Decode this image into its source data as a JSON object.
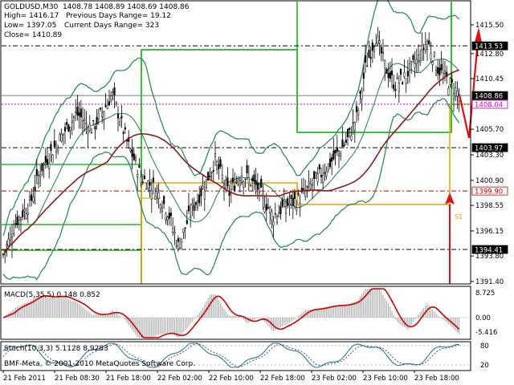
{
  "header": {
    "line1": "GOLDUSD,M30  1408.78 1408.89 1408.69 1408.86",
    "high": "High= 1416.17",
    "prev_range": "Previous Days Range= 19.12",
    "low": "Low= 1397.05",
    "curr_range": "Current Days Range= 323",
    "close": "Close= 1410.89"
  },
  "macd": {
    "title": "MACD(5,35,5) 0.148 0.852",
    "levels": [
      "8.725",
      "0.00",
      "-5.416"
    ]
  },
  "stoch": {
    "title": "Stoch(10,3,3) 5.1128 8.9283",
    "levels": [
      "80",
      "20"
    ]
  },
  "footer": "BMF-Meta, © 2001-2010 MetaQuotes Software Corp.",
  "price_labels": [
    "1415.50",
    "1412.80",
    "1410.45",
    "1405.70",
    "1403.30",
    "1400.90",
    "1398.55",
    "1396.15",
    "1393.80",
    "1391.40"
  ],
  "tagged_levels": [
    {
      "text": "1413.53",
      "value": 1413.53,
      "bg": "#000000",
      "fg": "#ffffff",
      "line": "#000000",
      "dash": "6 3 2 3"
    },
    {
      "text": "1408.86",
      "value": 1408.86,
      "bg": "#000000",
      "fg": "#ffffff",
      "line": "#7a7a7a",
      "dash": ""
    },
    {
      "text": "1408.04",
      "value": 1408.04,
      "bg": "#ffffff",
      "fg": "#cc00cc",
      "line": "#cc00cc",
      "dash": "2 2"
    },
    {
      "text": "1403.97",
      "value": 1403.97,
      "bg": "#000000",
      "fg": "#ffffff",
      "line": "#000000",
      "dash": "6 3 2 3"
    },
    {
      "text": "1399.90",
      "value": 1399.9,
      "bg": "#ffffff",
      "fg": "#cc0000",
      "line": "#cc0000",
      "dash": "6 3 2 3"
    },
    {
      "text": "1394.41",
      "value": 1394.41,
      "bg": "#000000",
      "fg": "#ffffff",
      "line": "#000000",
      "dash": "6 3 2 3"
    }
  ],
  "time_labels": [
    "21 Feb 2011",
    "21 Feb 08:30",
    "21 Feb 18:00",
    "22 Feb 02:00",
    "22 Feb 10:00",
    "22 Feb 18:00",
    "23 Feb 02:00",
    "23 Feb 10:00",
    "23 Feb 18:00"
  ],
  "pivot_tags": [
    "P",
    "S1"
  ],
  "colors": {
    "candle": "#000000",
    "bollinger": "#2e8b57",
    "ma": "#8b1a1a",
    "box_green": "#22bb22",
    "box_orange": "#f0a000",
    "arrow": "#dd1111",
    "macd_hist": "#b0b0b0",
    "macd_signal": "#cc0000",
    "stoch_main": "#2a7a9a",
    "stoch_signal": "#444444"
  }
}
